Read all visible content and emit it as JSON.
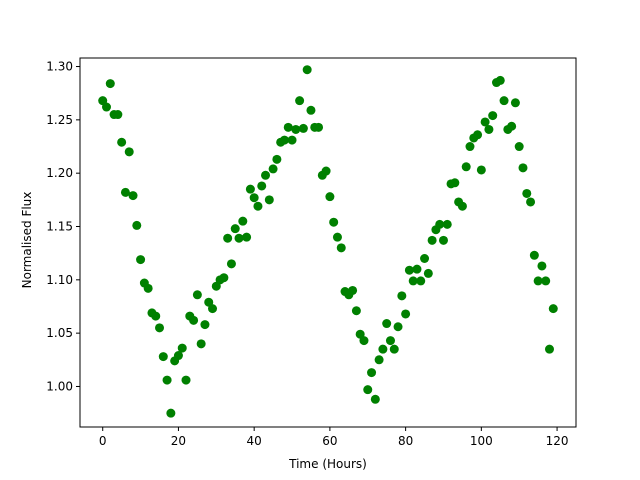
{
  "chart_data": {
    "type": "scatter",
    "xlabel": "Time (Hours)",
    "ylabel": "Normalised Flux",
    "xlim": [
      -6,
      125
    ],
    "ylim": [
      0.962,
      1.308
    ],
    "xticks": [
      0,
      20,
      40,
      60,
      80,
      100,
      120
    ],
    "yticks": [
      1.0,
      1.05,
      1.1,
      1.15,
      1.2,
      1.25,
      1.3
    ],
    "xtick_labels": [
      "0",
      "20",
      "40",
      "60",
      "80",
      "100",
      "120"
    ],
    "ytick_labels": [
      "1.00",
      "1.05",
      "1.10",
      "1.15",
      "1.20",
      "1.25",
      "1.30"
    ],
    "marker_color": "#008000",
    "grid": false,
    "series": [
      {
        "points": [
          [
            0,
            1.268
          ],
          [
            1,
            1.262
          ],
          [
            2,
            1.284
          ],
          [
            3,
            1.255
          ],
          [
            4,
            1.255
          ],
          [
            5,
            1.229
          ],
          [
            6,
            1.182
          ],
          [
            7,
            1.22
          ],
          [
            8,
            1.179
          ],
          [
            9,
            1.151
          ],
          [
            10,
            1.119
          ],
          [
            11,
            1.097
          ],
          [
            12,
            1.092
          ],
          [
            13,
            1.069
          ],
          [
            14,
            1.066
          ],
          [
            15,
            1.055
          ],
          [
            16,
            1.028
          ],
          [
            17,
            1.006
          ],
          [
            18,
            0.975
          ],
          [
            19,
            1.024
          ],
          [
            20,
            1.029
          ],
          [
            21,
            1.036
          ],
          [
            22,
            1.006
          ],
          [
            23,
            1.066
          ],
          [
            24,
            1.062
          ],
          [
            25,
            1.086
          ],
          [
            26,
            1.04
          ],
          [
            27,
            1.058
          ],
          [
            28,
            1.079
          ],
          [
            29,
            1.073
          ],
          [
            30,
            1.094
          ],
          [
            31,
            1.1
          ],
          [
            32,
            1.102
          ],
          [
            33,
            1.139
          ],
          [
            34,
            1.115
          ],
          [
            35,
            1.148
          ],
          [
            36,
            1.139
          ],
          [
            37,
            1.155
          ],
          [
            38,
            1.14
          ],
          [
            39,
            1.185
          ],
          [
            40,
            1.177
          ],
          [
            41,
            1.169
          ],
          [
            42,
            1.188
          ],
          [
            43,
            1.198
          ],
          [
            44,
            1.175
          ],
          [
            45,
            1.204
          ],
          [
            46,
            1.213
          ],
          [
            47,
            1.229
          ],
          [
            48,
            1.231
          ],
          [
            49,
            1.243
          ],
          [
            50,
            1.231
          ],
          [
            51,
            1.241
          ],
          [
            52,
            1.268
          ],
          [
            53,
            1.242
          ],
          [
            54,
            1.297
          ],
          [
            55,
            1.259
          ],
          [
            56,
            1.243
          ],
          [
            57,
            1.243
          ],
          [
            58,
            1.198
          ],
          [
            59,
            1.202
          ],
          [
            60,
            1.178
          ],
          [
            61,
            1.154
          ],
          [
            62,
            1.14
          ],
          [
            63,
            1.13
          ],
          [
            64,
            1.089
          ],
          [
            65,
            1.086
          ],
          [
            66,
            1.09
          ],
          [
            67,
            1.071
          ],
          [
            68,
            1.049
          ],
          [
            69,
            1.043
          ],
          [
            70,
            0.997
          ],
          [
            71,
            1.013
          ],
          [
            72,
            0.988
          ],
          [
            73,
            1.025
          ],
          [
            74,
            1.035
          ],
          [
            75,
            1.059
          ],
          [
            76,
            1.043
          ],
          [
            77,
            1.035
          ],
          [
            78,
            1.056
          ],
          [
            79,
            1.085
          ],
          [
            80,
            1.068
          ],
          [
            81,
            1.109
          ],
          [
            82,
            1.099
          ],
          [
            83,
            1.11
          ],
          [
            84,
            1.099
          ],
          [
            85,
            1.12
          ],
          [
            86,
            1.106
          ],
          [
            87,
            1.137
          ],
          [
            88,
            1.147
          ],
          [
            89,
            1.152
          ],
          [
            90,
            1.137
          ],
          [
            91,
            1.152
          ],
          [
            92,
            1.19
          ],
          [
            93,
            1.191
          ],
          [
            94,
            1.173
          ],
          [
            95,
            1.169
          ],
          [
            96,
            1.206
          ],
          [
            97,
            1.225
          ],
          [
            98,
            1.233
          ],
          [
            99,
            1.236
          ],
          [
            100,
            1.203
          ],
          [
            101,
            1.248
          ],
          [
            102,
            1.241
          ],
          [
            103,
            1.254
          ],
          [
            104,
            1.285
          ],
          [
            105,
            1.287
          ],
          [
            106,
            1.268
          ],
          [
            107,
            1.241
          ],
          [
            108,
            1.244
          ],
          [
            109,
            1.266
          ],
          [
            110,
            1.225
          ],
          [
            111,
            1.205
          ],
          [
            112,
            1.181
          ],
          [
            113,
            1.173
          ],
          [
            114,
            1.123
          ],
          [
            115,
            1.099
          ],
          [
            116,
            1.113
          ],
          [
            117,
            1.099
          ],
          [
            118,
            1.035
          ],
          [
            119,
            1.073
          ]
        ]
      }
    ]
  }
}
